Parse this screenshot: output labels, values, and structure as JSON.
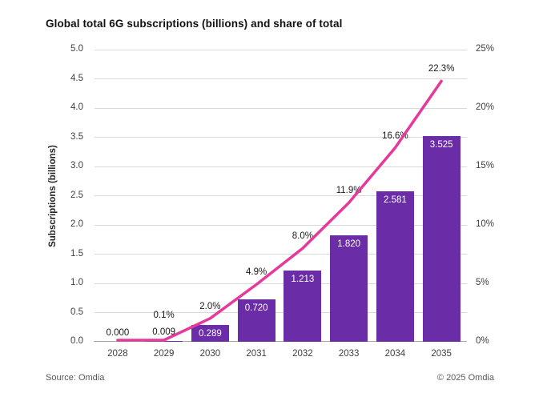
{
  "title": "Global total 6G subscriptions (billions) and share of total",
  "chart_data": {
    "type": "bar",
    "subtype": "combo-bar-line",
    "categories": [
      "2028",
      "2029",
      "2030",
      "2031",
      "2032",
      "2033",
      "2034",
      "2035"
    ],
    "series": [
      {
        "name": "Subscriptions (billions)",
        "type": "bar",
        "axis": "left",
        "color": "#6B2CA7",
        "values": [
          0.0,
          0.009,
          0.289,
          0.72,
          1.213,
          1.82,
          2.581,
          3.525
        ],
        "data_labels": [
          "0.000",
          "0.009",
          "0.289",
          "0.720",
          "1.213",
          "1.820",
          "2.581",
          "3.525"
        ]
      },
      {
        "name": "Share of total",
        "type": "line",
        "axis": "right",
        "color": "#E5399B",
        "values": [
          0.0,
          0.1,
          2.0,
          4.9,
          8.0,
          11.9,
          16.6,
          22.3
        ],
        "data_labels": [
          "",
          "0.1%",
          "2.0%",
          "4.9%",
          "8.0%",
          "11.9%",
          "16.6%",
          "22.3%"
        ]
      }
    ],
    "left_axis": {
      "title": "Subscriptions (billions)",
      "min": 0,
      "max": 5,
      "tick_step": 0.5,
      "tick_labels": [
        "0.0",
        "0.5",
        "1.0",
        "1.5",
        "2.0",
        "2.5",
        "3.0",
        "3.5",
        "4.0",
        "4.5",
        "5.0"
      ]
    },
    "right_axis": {
      "min": 0,
      "max": 25,
      "tick_step": 5,
      "tick_labels": [
        "0%",
        "5%",
        "10%",
        "15%",
        "20%",
        "25%"
      ]
    },
    "grid": "horizontal",
    "legend": "none"
  },
  "footer": {
    "source": "Source: Omdia",
    "copyright": "© 2025 Omdia"
  }
}
